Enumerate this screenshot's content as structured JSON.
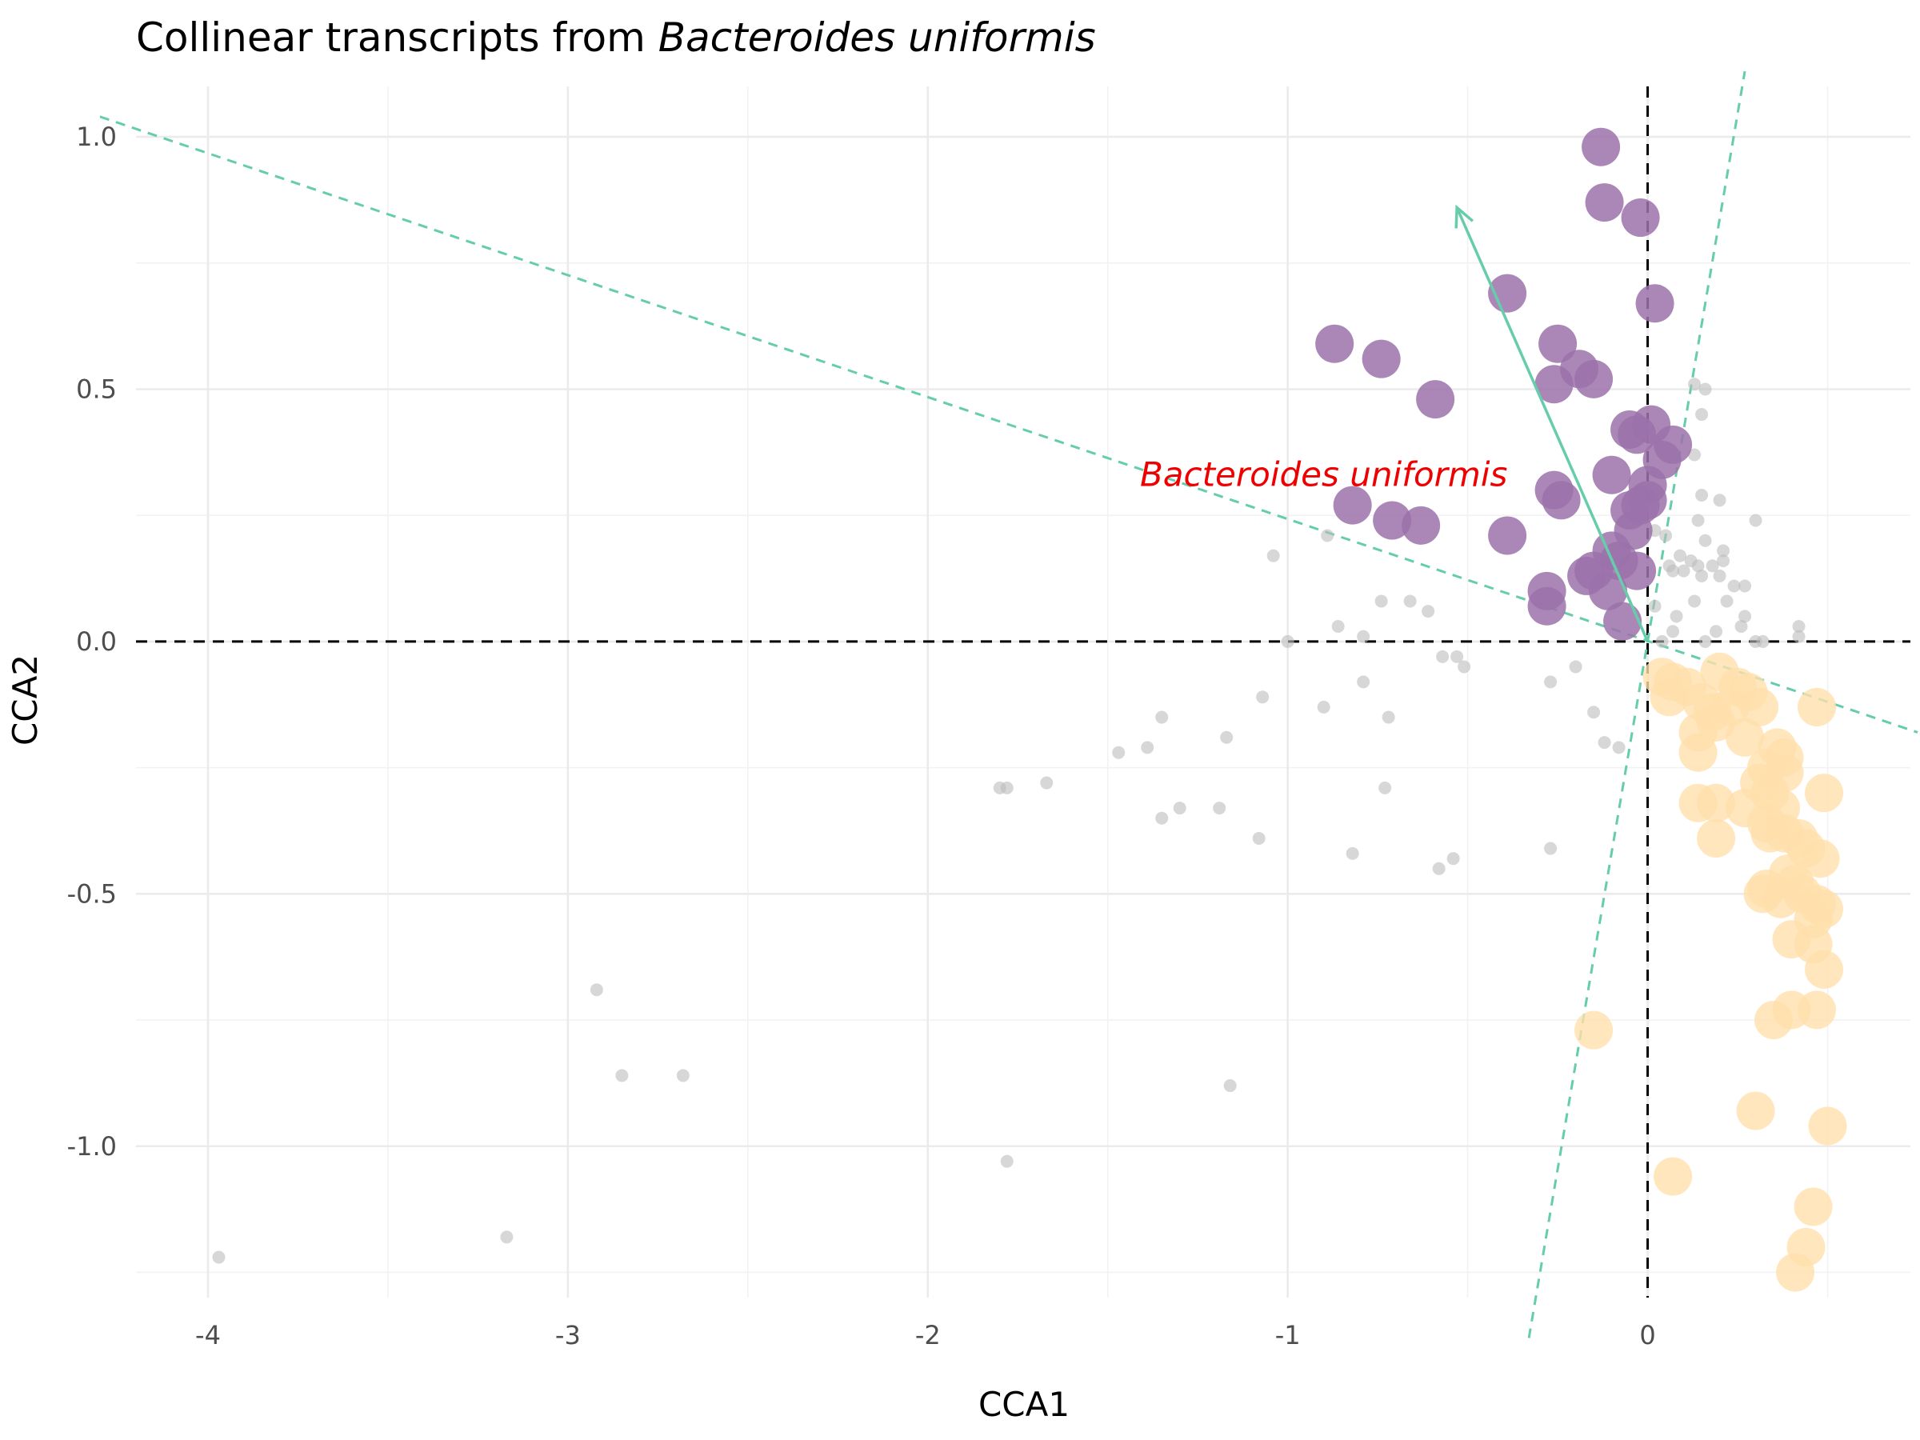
{
  "chart_data": {
    "type": "scatter",
    "title_prefix": "Collinear transcripts from ",
    "title_species": "Bacteroides uniformis",
    "xlabel": "CCA1",
    "ylabel": "CCA2",
    "xlim": [
      -4.2,
      0.73
    ],
    "ylim": [
      -1.3,
      1.1
    ],
    "grid": true,
    "legend": "none",
    "x_ticks": [
      -4,
      -3,
      -2,
      -1,
      0
    ],
    "x_tick_labels": [
      "-4",
      "-3",
      "-2",
      "-1",
      "0"
    ],
    "y_ticks": [
      -1.0,
      -0.5,
      0.0,
      0.5,
      1.0
    ],
    "y_tick_labels": [
      "-1.0",
      "-0.5",
      "0.0",
      "0.5",
      "1.0"
    ],
    "colors": {
      "positive": "#9b72aa",
      "negative": "#ffe0ad",
      "other": "#bdbdbd",
      "arrow": "#66cdaa",
      "annotation": "#ee0000"
    },
    "annotation": {
      "text": "Bacteroides uniformis",
      "x": -0.9,
      "y": 0.33
    },
    "arrow": {
      "x0": 0,
      "y0": 0,
      "x1": -0.53,
      "y1": 0.86
    },
    "reference_lines": [
      {
        "x0": -4.3,
        "y0": 1.04,
        "x1": 0.75,
        "y1": -0.18
      },
      {
        "x0": -0.33,
        "y0": -1.38,
        "x1": 0.27,
        "y1": 1.13
      }
    ],
    "series": [
      {
        "group": "positive",
        "points": [
          [
            -0.13,
            0.98
          ],
          [
            -0.12,
            0.87
          ],
          [
            -0.02,
            0.84
          ],
          [
            0.02,
            0.67
          ],
          [
            -0.39,
            0.69
          ],
          [
            -0.87,
            0.59
          ],
          [
            -0.74,
            0.56
          ],
          [
            -0.59,
            0.48
          ],
          [
            -0.25,
            0.59
          ],
          [
            -0.19,
            0.54
          ],
          [
            -0.15,
            0.52
          ],
          [
            -0.26,
            0.51
          ],
          [
            -0.05,
            0.42
          ],
          [
            -0.03,
            0.41
          ],
          [
            0.01,
            0.43
          ],
          [
            0.07,
            0.39
          ],
          [
            0.04,
            0.36
          ],
          [
            -0.1,
            0.33
          ],
          [
            0.0,
            0.31
          ],
          [
            -0.26,
            0.3
          ],
          [
            -0.24,
            0.28
          ],
          [
            -0.82,
            0.27
          ],
          [
            -0.05,
            0.26
          ],
          [
            -0.02,
            0.27
          ],
          [
            0.0,
            0.28
          ],
          [
            -0.71,
            0.24
          ],
          [
            -0.63,
            0.23
          ],
          [
            -0.04,
            0.22
          ],
          [
            -0.39,
            0.21
          ],
          [
            -0.1,
            0.18
          ],
          [
            -0.08,
            0.16
          ],
          [
            -0.03,
            0.14
          ],
          [
            -0.15,
            0.14
          ],
          [
            -0.17,
            0.13
          ],
          [
            -0.11,
            0.1
          ],
          [
            -0.28,
            0.1
          ],
          [
            -0.28,
            0.07
          ],
          [
            -0.07,
            0.04
          ]
        ]
      },
      {
        "group": "negative",
        "points": [
          [
            0.04,
            -0.07
          ],
          [
            0.07,
            -0.08
          ],
          [
            0.11,
            -0.09
          ],
          [
            0.06,
            -0.11
          ],
          [
            0.15,
            -0.12
          ],
          [
            0.2,
            -0.06
          ],
          [
            0.25,
            -0.09
          ],
          [
            0.28,
            -0.1
          ],
          [
            0.47,
            -0.13
          ],
          [
            0.18,
            -0.14
          ],
          [
            0.23,
            -0.13
          ],
          [
            0.31,
            -0.13
          ],
          [
            0.14,
            -0.18
          ],
          [
            0.19,
            -0.16
          ],
          [
            0.27,
            -0.19
          ],
          [
            0.36,
            -0.21
          ],
          [
            0.14,
            -0.22
          ],
          [
            0.33,
            -0.25
          ],
          [
            0.38,
            -0.23
          ],
          [
            0.31,
            -0.28
          ],
          [
            0.38,
            -0.26
          ],
          [
            0.34,
            -0.3
          ],
          [
            0.49,
            -0.3
          ],
          [
            0.14,
            -0.32
          ],
          [
            0.19,
            -0.32
          ],
          [
            0.27,
            -0.33
          ],
          [
            0.37,
            -0.33
          ],
          [
            0.33,
            -0.36
          ],
          [
            0.38,
            -0.38
          ],
          [
            0.34,
            -0.38
          ],
          [
            0.42,
            -0.39
          ],
          [
            0.19,
            -0.39
          ],
          [
            0.44,
            -0.41
          ],
          [
            0.48,
            -0.43
          ],
          [
            0.39,
            -0.46
          ],
          [
            0.33,
            -0.49
          ],
          [
            0.41,
            -0.48
          ],
          [
            0.43,
            -0.5
          ],
          [
            0.32,
            -0.5
          ],
          [
            0.37,
            -0.51
          ],
          [
            0.47,
            -0.52
          ],
          [
            0.49,
            -0.53
          ],
          [
            0.46,
            -0.55
          ],
          [
            0.4,
            -0.59
          ],
          [
            0.46,
            -0.6
          ],
          [
            0.49,
            -0.65
          ],
          [
            0.4,
            -0.73
          ],
          [
            0.47,
            -0.73
          ],
          [
            0.35,
            -0.75
          ],
          [
            -0.15,
            -0.77
          ],
          [
            0.3,
            -0.93
          ],
          [
            0.5,
            -0.96
          ],
          [
            0.07,
            -1.06
          ],
          [
            0.46,
            -1.12
          ],
          [
            0.44,
            -1.2
          ],
          [
            0.41,
            -1.25
          ]
        ]
      },
      {
        "group": "other",
        "points": [
          [
            0.13,
            0.51
          ],
          [
            0.16,
            0.5
          ],
          [
            0.15,
            0.45
          ],
          [
            0.13,
            0.37
          ],
          [
            0.15,
            0.29
          ],
          [
            0.2,
            0.28
          ],
          [
            0.14,
            0.24
          ],
          [
            0.3,
            0.24
          ],
          [
            0.16,
            0.2
          ],
          [
            0.21,
            0.18
          ],
          [
            0.21,
            0.16
          ],
          [
            0.18,
            0.15
          ],
          [
            0.14,
            0.15
          ],
          [
            0.24,
            0.11
          ],
          [
            0.27,
            0.11
          ],
          [
            0.15,
            0.13
          ],
          [
            0.2,
            0.13
          ],
          [
            0.13,
            0.08
          ],
          [
            0.22,
            0.08
          ],
          [
            0.27,
            0.05
          ],
          [
            0.26,
            0.03
          ],
          [
            0.3,
            0.0
          ],
          [
            0.32,
            0.0
          ],
          [
            0.19,
            0.02
          ],
          [
            0.16,
            0.0
          ],
          [
            0.42,
            0.03
          ],
          [
            0.42,
            0.01
          ],
          [
            0.04,
            0.0
          ],
          [
            0.07,
            0.02
          ],
          [
            0.02,
            0.22
          ],
          [
            0.05,
            0.21
          ],
          [
            0.09,
            0.17
          ],
          [
            0.07,
            0.14
          ],
          [
            0.12,
            0.16
          ],
          [
            0.1,
            0.14
          ],
          [
            0.06,
            0.15
          ],
          [
            0.02,
            0.07
          ],
          [
            0.08,
            0.05
          ],
          [
            -0.89,
            0.21
          ],
          [
            -1.04,
            0.17
          ],
          [
            -0.74,
            0.08
          ],
          [
            -0.66,
            0.08
          ],
          [
            -0.61,
            0.06
          ],
          [
            -0.86,
            0.03
          ],
          [
            -0.79,
            0.01
          ],
          [
            -1.0,
            0.0
          ],
          [
            -0.57,
            -0.03
          ],
          [
            -0.53,
            -0.03
          ],
          [
            -0.51,
            -0.05
          ],
          [
            -0.79,
            -0.08
          ],
          [
            -0.2,
            -0.05
          ],
          [
            -0.27,
            -0.08
          ],
          [
            -1.07,
            -0.11
          ],
          [
            -0.9,
            -0.13
          ],
          [
            -0.72,
            -0.15
          ],
          [
            -1.35,
            -0.15
          ],
          [
            -0.15,
            -0.14
          ],
          [
            -0.12,
            -0.2
          ],
          [
            -0.08,
            -0.21
          ],
          [
            -1.39,
            -0.21
          ],
          [
            -1.47,
            -0.22
          ],
          [
            -1.17,
            -0.19
          ],
          [
            -1.8,
            -0.29
          ],
          [
            -1.78,
            -0.29
          ],
          [
            -1.67,
            -0.28
          ],
          [
            -0.73,
            -0.29
          ],
          [
            -1.19,
            -0.33
          ],
          [
            -1.3,
            -0.33
          ],
          [
            -1.35,
            -0.35
          ],
          [
            -1.08,
            -0.39
          ],
          [
            -0.82,
            -0.42
          ],
          [
            -0.54,
            -0.43
          ],
          [
            -0.58,
            -0.45
          ],
          [
            -0.27,
            -0.41
          ],
          [
            -2.92,
            -0.69
          ],
          [
            -2.85,
            -0.86
          ],
          [
            -2.68,
            -0.86
          ],
          [
            -1.16,
            -0.88
          ],
          [
            -1.78,
            -1.03
          ],
          [
            -3.17,
            -1.18
          ],
          [
            -3.97,
            -1.22
          ]
        ]
      }
    ]
  }
}
